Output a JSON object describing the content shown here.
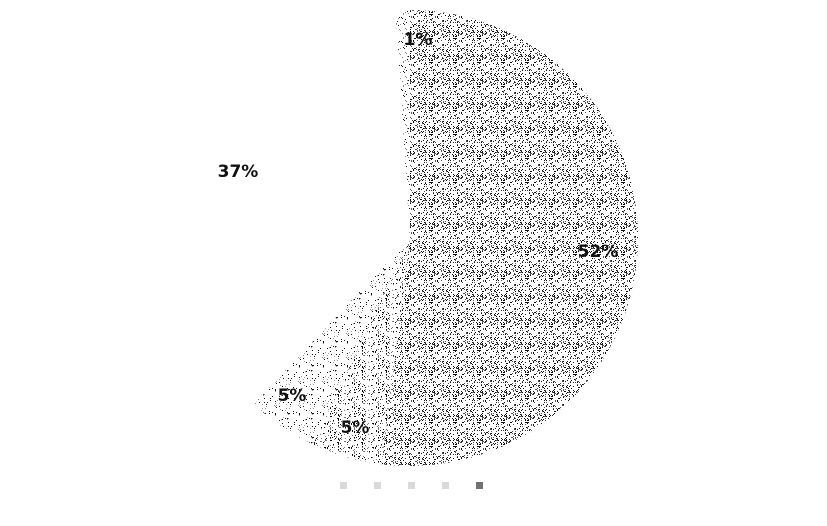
{
  "chart_data": {
    "type": "pie",
    "title": "",
    "slices": [
      {
        "value": 52,
        "label": "52%",
        "color": "#555555",
        "pattern_density": 0.55
      },
      {
        "value": 5,
        "label": "5%",
        "color": "#777777",
        "pattern_density": 0.35
      },
      {
        "value": 5,
        "label": "5%",
        "color": "#999999",
        "pattern_density": 0.18
      },
      {
        "value": 37,
        "label": "37%",
        "color": "#ffffff",
        "pattern_density": 0.0
      },
      {
        "value": 1,
        "label": "1%",
        "color": "#888888",
        "pattern_density": 0.2
      }
    ],
    "legend": {
      "placement": "bottom",
      "entries": [
        {
          "name": "",
          "color": "#bbbbbb"
        },
        {
          "name": "",
          "color": "#bbbbbb"
        },
        {
          "name": "",
          "color": "#bbbbbb"
        },
        {
          "name": "",
          "color": "#bbbbbb"
        },
        {
          "name": "",
          "color": "#000000"
        }
      ]
    }
  }
}
